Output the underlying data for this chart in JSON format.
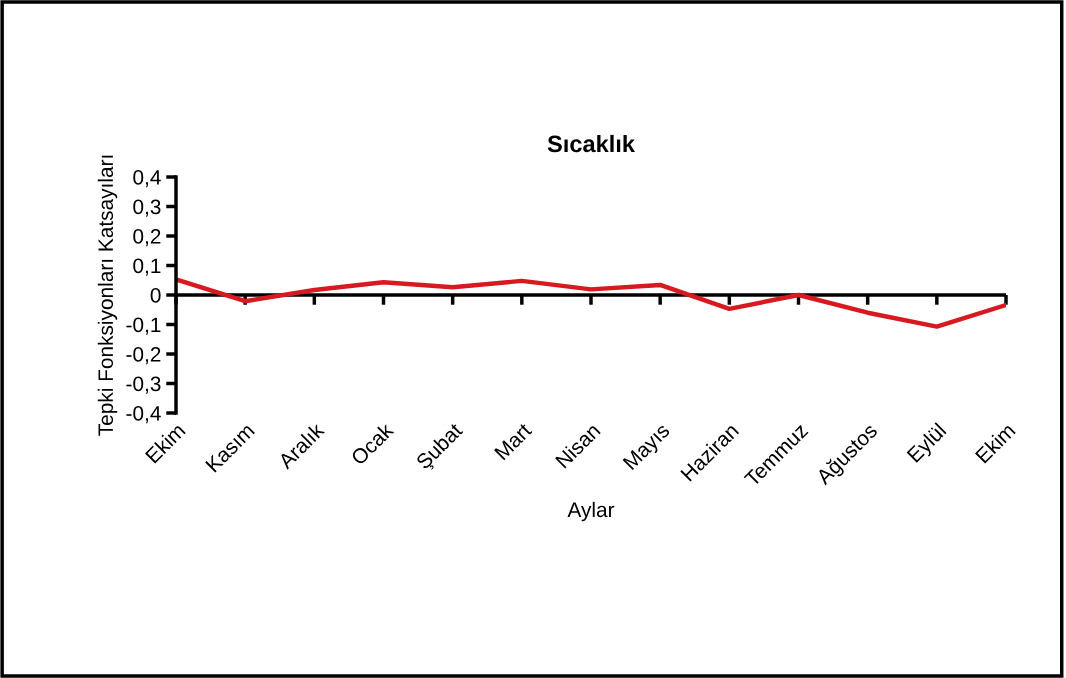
{
  "chart_data": {
    "type": "line",
    "title": "Sıcaklık",
    "xlabel": "Aylar",
    "ylabel": "Tepki Fonksiyonları Katsayıları",
    "categories": [
      "Ekim",
      "Kasım",
      "Aralık",
      "Ocak",
      "Şubat",
      "Mart",
      "Nisan",
      "Mayıs",
      "Haziran",
      "Temmuz",
      "Ağustos",
      "Eylül",
      "Ekim"
    ],
    "series": [
      {
        "color": "#d71920",
        "values": [
          0.053,
          -0.021,
          0.017,
          0.043,
          0.026,
          0.048,
          0.019,
          0.034,
          -0.047,
          0.0,
          -0.06,
          -0.107,
          -0.034
        ]
      }
    ],
    "ylim": [
      -0.4,
      0.4
    ],
    "yticks": [
      {
        "value": -0.4,
        "label": "-0,4"
      },
      {
        "value": -0.3,
        "label": "-0,3"
      },
      {
        "value": -0.2,
        "label": "-0,2"
      },
      {
        "value": -0.1,
        "label": "-0,1"
      },
      {
        "value": 0,
        "label": "0"
      },
      {
        "value": 0.1,
        "label": "0,1"
      },
      {
        "value": 0.2,
        "label": "0,2"
      },
      {
        "value": 0.3,
        "label": "0,3"
      },
      {
        "value": 0.4,
        "label": "0,4"
      }
    ],
    "ref_lines": [
      {
        "axis": "y",
        "value": 0,
        "color": "#000000",
        "line_style": "solid"
      }
    ],
    "grid": false,
    "legend": false,
    "marker": "none",
    "line_style": "solid"
  }
}
